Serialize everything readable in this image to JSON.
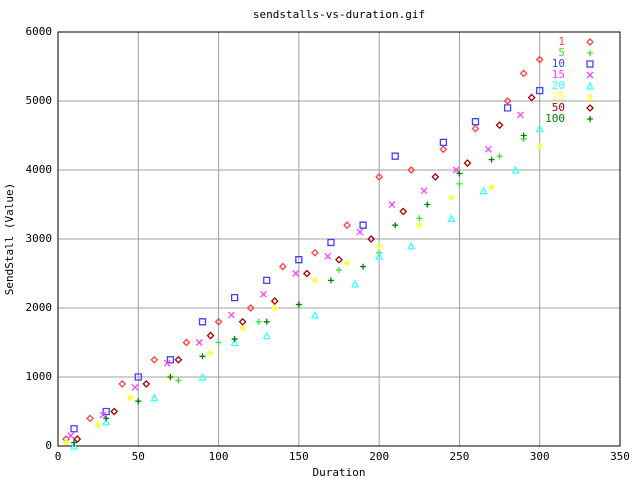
{
  "chart_data": {
    "type": "scatter",
    "title": "sendstalls-vs-duration.gif",
    "x_label": "Duration",
    "y_label": "SendStall (Value)",
    "xlim": [
      0,
      350
    ],
    "xticks": [
      0,
      50,
      100,
      150,
      200,
      250,
      300,
      350
    ],
    "ylim": [
      0,
      6000
    ],
    "yticks": [
      0,
      1000,
      2000,
      3000,
      4000,
      5000,
      6000
    ],
    "grid": true,
    "legend": "top-right",
    "series": [
      {
        "name": "1",
        "color": "#ff4040",
        "marker": "diamond",
        "x": [
          5,
          20,
          40,
          60,
          80,
          100,
          120,
          140,
          160,
          180,
          200,
          220,
          240,
          260,
          280,
          290,
          300
        ],
        "values": [
          100,
          400,
          900,
          1250,
          1500,
          1800,
          2000,
          2600,
          2800,
          3200,
          3900,
          4000,
          4300,
          4600,
          5000,
          5400,
          5600
        ]
      },
      {
        "name": "5",
        "color": "#40e040",
        "marker": "plus",
        "x": [
          5,
          25,
          50,
          75,
          100,
          125,
          150,
          175,
          200,
          225,
          250,
          275,
          290
        ],
        "values": [
          50,
          300,
          650,
          950,
          1500,
          1800,
          2050,
          2550,
          2800,
          3300,
          3800,
          4200,
          4450
        ]
      },
      {
        "name": "10",
        "color": "#4040ff",
        "marker": "square",
        "x": [
          10,
          30,
          50,
          70,
          90,
          110,
          130,
          150,
          170,
          190,
          210,
          240,
          260,
          280,
          300
        ],
        "values": [
          250,
          500,
          1000,
          1250,
          1800,
          2150,
          2400,
          2700,
          2950,
          3200,
          4200,
          4400,
          4700,
          4900,
          5150
        ]
      },
      {
        "name": "15",
        "color": "#ff40ff",
        "marker": "cross",
        "x": [
          8,
          28,
          48,
          68,
          88,
          108,
          128,
          148,
          168,
          188,
          208,
          228,
          248,
          268,
          288
        ],
        "values": [
          150,
          450,
          850,
          1200,
          1500,
          1900,
          2200,
          2500,
          2750,
          3100,
          3500,
          3700,
          4000,
          4300,
          4800
        ]
      },
      {
        "name": "20",
        "color": "#40ffff",
        "marker": "triangle",
        "x": [
          10,
          30,
          60,
          90,
          110,
          130,
          160,
          185,
          200,
          220,
          245,
          265,
          285,
          300
        ],
        "values": [
          0,
          350,
          700,
          1000,
          1500,
          1600,
          1900,
          2350,
          2750,
          2900,
          3300,
          3700,
          4000,
          4600
        ]
      },
      {
        "name": "25",
        "color": "#ffff40",
        "marker": "star",
        "x": [
          5,
          25,
          45,
          70,
          95,
          115,
          135,
          160,
          180,
          200,
          225,
          245,
          270,
          300
        ],
        "values": [
          50,
          300,
          700,
          1000,
          1350,
          1700,
          2000,
          2400,
          2650,
          2900,
          3200,
          3600,
          3750,
          4350
        ]
      },
      {
        "name": "50",
        "color": "#a00000",
        "marker": "diamond",
        "x": [
          12,
          35,
          55,
          75,
          95,
          115,
          135,
          155,
          175,
          195,
          215,
          235,
          255,
          275,
          295
        ],
        "values": [
          100,
          500,
          900,
          1250,
          1600,
          1800,
          2100,
          2500,
          2700,
          3000,
          3400,
          3900,
          4100,
          4650,
          5050
        ]
      },
      {
        "name": "100",
        "color": "#008000",
        "marker": "plus",
        "x": [
          10,
          30,
          50,
          70,
          90,
          110,
          130,
          150,
          170,
          190,
          210,
          230,
          250,
          270,
          290
        ],
        "values": [
          50,
          400,
          650,
          1000,
          1300,
          1550,
          1800,
          2050,
          2400,
          2600,
          3200,
          3500,
          3950,
          4150,
          4500
        ]
      }
    ]
  }
}
